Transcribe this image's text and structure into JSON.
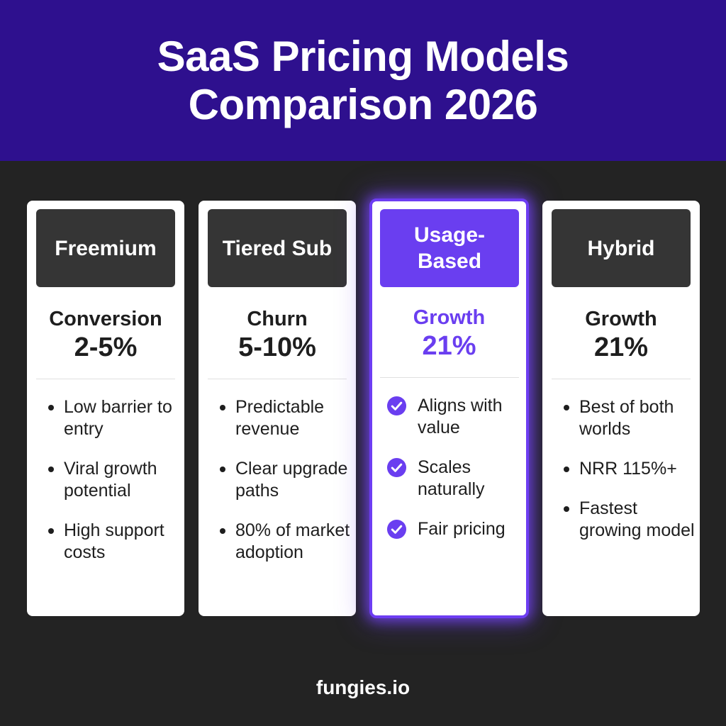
{
  "header": {
    "title_line1": "SaaS Pricing Models",
    "title_line2": "Comparison 2026"
  },
  "colors": {
    "header_bg": "#2e108e",
    "page_bg": "#232323",
    "accent": "#6a3ef0",
    "card_header_bg": "#353535"
  },
  "cards": [
    {
      "name": "Freemium",
      "metric_label": "Conversion",
      "metric_value": "2-5%",
      "highlighted": false,
      "bullets": [
        "Low barrier to entry",
        "Viral growth potential",
        "High support costs"
      ]
    },
    {
      "name": "Tiered Sub",
      "metric_label": "Churn",
      "metric_value": "5-10%",
      "highlighted": false,
      "bullets": [
        "Predictable revenue",
        "Clear upgrade paths",
        "80% of market adoption"
      ]
    },
    {
      "name": "Usage-\nBased",
      "metric_label": "Growth",
      "metric_value": "21%",
      "highlighted": true,
      "bullet_icon": "check-circle-icon",
      "bullets": [
        "Aligns with value",
        "Scales naturally",
        "Fair pricing"
      ]
    },
    {
      "name": "Hybrid",
      "metric_label": "Growth",
      "metric_value": "21%",
      "highlighted": false,
      "bullets": [
        "Best of both worlds",
        "NRR 115%+",
        "Fastest growing model"
      ]
    }
  ],
  "footer": {
    "brand": "fungies.io"
  }
}
